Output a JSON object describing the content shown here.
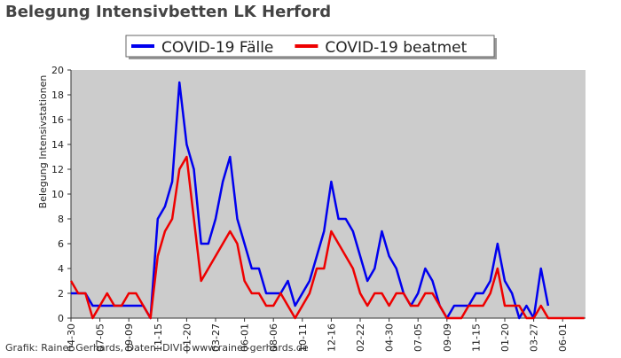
{
  "chart_data": {
    "type": "line",
    "title": "Belegung Intensivbetten LK Herford",
    "y_label": "Belegung Intensivstationen",
    "footer": "Grafik: Rainer Gerhards, Daten: DIVI | www.rainer-gerhards.de",
    "categories": [
      "04-30",
      null,
      null,
      null,
      "07-05",
      null,
      null,
      null,
      "09-09",
      null,
      null,
      null,
      "11-15",
      null,
      null,
      null,
      "01-20",
      null,
      null,
      null,
      "03-27",
      null,
      null,
      null,
      "06-01",
      null,
      null,
      null,
      "08-06",
      null,
      null,
      null,
      "10-11",
      null,
      null,
      null,
      "12-16",
      null,
      null,
      null,
      "02-22",
      null,
      null,
      null,
      "04-30",
      null,
      null,
      null,
      "07-05",
      null,
      null,
      null,
      "09-09",
      null,
      null,
      null,
      "11-15",
      null,
      null,
      null,
      "01-20",
      null,
      null,
      null,
      "03-27",
      null,
      null,
      null,
      "06-01",
      null,
      null,
      null
    ],
    "series": [
      {
        "name": "COVID-19 Fälle",
        "color": "#0000ee",
        "values": [
          2,
          2,
          2,
          1,
          1,
          1,
          1,
          1,
          1,
          1,
          1,
          0,
          8,
          9,
          11,
          19,
          14,
          12,
          6,
          6,
          8,
          11,
          13,
          8,
          6,
          4,
          4,
          2,
          2,
          2,
          3,
          1,
          2,
          3,
          5,
          7,
          11,
          8,
          8,
          7,
          5,
          3,
          4,
          7,
          5,
          4,
          2,
          1,
          2,
          4,
          3,
          1,
          0,
          1,
          1,
          1,
          2,
          2,
          3,
          6,
          3,
          2,
          0,
          1,
          0,
          4,
          1,
          null,
          null,
          null,
          null,
          null
        ]
      },
      {
        "name": "COVID-19 beatmet",
        "color": "#ee0000",
        "values": [
          3,
          2,
          2,
          0,
          1,
          2,
          1,
          1,
          2,
          2,
          1,
          0,
          5,
          7,
          8,
          12,
          13,
          8,
          3,
          4,
          5,
          6,
          7,
          6,
          3,
          2,
          2,
          1,
          1,
          2,
          1,
          0,
          1,
          2,
          4,
          4,
          7,
          6,
          5,
          4,
          2,
          1,
          2,
          2,
          1,
          2,
          2,
          1,
          1,
          2,
          2,
          1,
          0,
          0,
          0,
          1,
          1,
          1,
          2,
          4,
          1,
          1,
          1,
          0,
          0,
          1,
          0,
          0,
          0,
          0,
          0,
          0
        ]
      }
    ],
    "ylim": [
      0,
      20
    ],
    "yticks": [
      0,
      2,
      4,
      6,
      8,
      10,
      12,
      14,
      16,
      18,
      20
    ],
    "legend": "top",
    "background": "#cccccc"
  }
}
